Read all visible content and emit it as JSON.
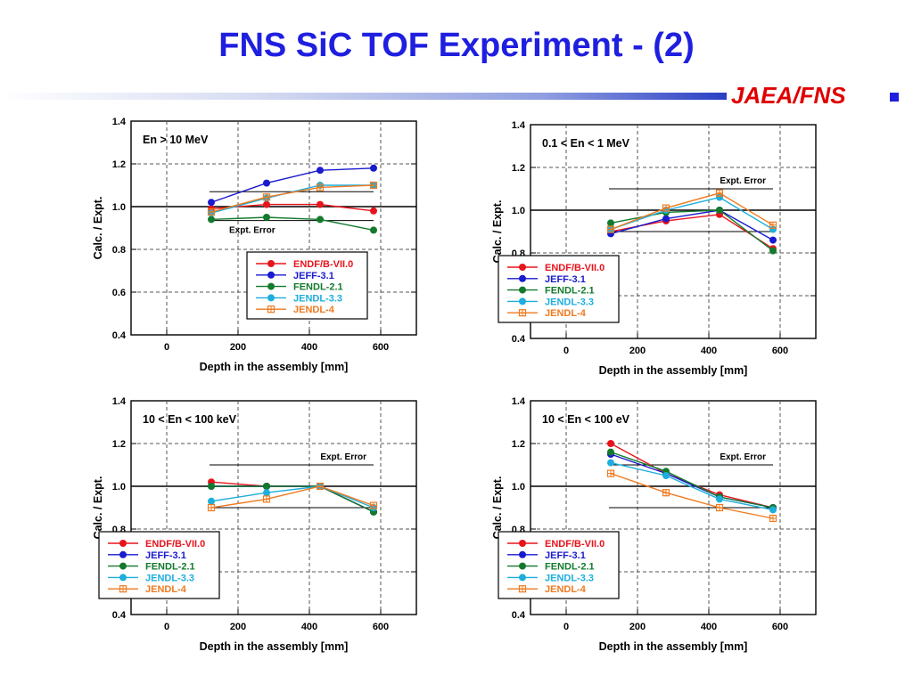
{
  "slide": {
    "title": "FNS SiC TOF Experiment - (2)",
    "brand": "JAEA/FNS"
  },
  "colors": {
    "title": "#1f1fe0",
    "brand": "#e00000",
    "series": {
      "ENDF/B-VII.0": "#e8141c",
      "JEFF-3.1": "#1a1ad0",
      "FENDL-2.1": "#137a2d",
      "JENDL-3.3": "#1eaedc",
      "JENDL-4": "#ef7a20"
    }
  },
  "chart_data": [
    {
      "type": "line",
      "annotation": "En > 10 MeV",
      "xlabel": "Depth in the assembly [mm]",
      "ylabel": "Calc. / Expt.",
      "xlim": [
        -100,
        700
      ],
      "ylim": [
        0.4,
        1.4
      ],
      "xticks": [
        0,
        200,
        400,
        600
      ],
      "yticks": [
        0.4,
        0.6,
        0.8,
        1.0,
        1.2,
        1.4
      ],
      "grid": true,
      "legend_position": "lower-right",
      "expt_error": {
        "label": "Expt. Error",
        "upper": 1.07,
        "lower": 0.935,
        "x": [
          120,
          580
        ]
      },
      "x": [
        125,
        280,
        430,
        580
      ],
      "series": [
        {
          "name": "ENDF/B-VII.0",
          "marker": "circle",
          "values": [
            0.99,
            1.01,
            1.01,
            0.98
          ]
        },
        {
          "name": "JEFF-3.1",
          "marker": "circle",
          "values": [
            1.02,
            1.11,
            1.17,
            1.18
          ]
        },
        {
          "name": "FENDL-2.1",
          "marker": "circle",
          "values": [
            0.94,
            0.95,
            0.94,
            0.89
          ]
        },
        {
          "name": "JENDL-3.3",
          "marker": "circle",
          "values": [
            0.97,
            1.04,
            1.1,
            1.1
          ]
        },
        {
          "name": "JENDL-4",
          "marker": "square-plus",
          "values": [
            0.975,
            1.045,
            1.09,
            1.1
          ]
        }
      ]
    },
    {
      "type": "line",
      "annotation": "0.1 < En < 1 MeV",
      "xlabel": "Depth in the assembly [mm]",
      "ylabel": "Calc. / Expt.",
      "xlim": [
        -100,
        700
      ],
      "ylim": [
        0.4,
        1.4
      ],
      "xticks": [
        0,
        200,
        400,
        600
      ],
      "yticks": [
        0.4,
        0.6,
        0.8,
        1.0,
        1.2,
        1.4
      ],
      "grid": true,
      "legend_position": "lower-left",
      "expt_error": {
        "label": "Expt. Error",
        "upper": 1.1,
        "lower": 0.9,
        "x": [
          120,
          580
        ]
      },
      "x": [
        125,
        280,
        430,
        580
      ],
      "series": [
        {
          "name": "ENDF/B-VII.0",
          "marker": "circle",
          "values": [
            0.9,
            0.95,
            0.98,
            0.82
          ]
        },
        {
          "name": "JEFF-3.1",
          "marker": "circle",
          "values": [
            0.89,
            0.96,
            1.0,
            0.86
          ]
        },
        {
          "name": "FENDL-2.1",
          "marker": "circle",
          "values": [
            0.94,
            0.99,
            1.0,
            0.81
          ]
        },
        {
          "name": "JENDL-3.3",
          "marker": "circle",
          "values": [
            0.91,
            1.0,
            1.06,
            0.91
          ]
        },
        {
          "name": "JENDL-4",
          "marker": "square-plus",
          "values": [
            0.91,
            1.01,
            1.08,
            0.93
          ]
        }
      ]
    },
    {
      "type": "line",
      "annotation": "10 < En < 100 keV",
      "xlabel": "Depth in the assembly [mm]",
      "ylabel": "Calc. / Expt.",
      "xlim": [
        -100,
        700
      ],
      "ylim": [
        0.4,
        1.4
      ],
      "xticks": [
        0,
        200,
        400,
        600
      ],
      "yticks": [
        0.4,
        0.6,
        0.8,
        1.0,
        1.2,
        1.4
      ],
      "grid": true,
      "legend_position": "lower-left",
      "expt_error": {
        "label": "Expt. Error",
        "upper": 1.1,
        "lower": 0.9,
        "x": [
          120,
          580
        ]
      },
      "x": [
        125,
        280,
        430,
        580
      ],
      "series": [
        {
          "name": "ENDF/B-VII.0",
          "marker": "circle",
          "values": [
            1.02,
            1.0,
            1.0,
            0.88
          ]
        },
        {
          "name": "JEFF-3.1",
          "marker": "circle",
          "values": [
            1.0,
            1.0,
            1.0,
            0.88
          ]
        },
        {
          "name": "FENDL-2.1",
          "marker": "circle",
          "values": [
            1.0,
            1.0,
            1.0,
            0.88
          ]
        },
        {
          "name": "JENDL-3.3",
          "marker": "circle",
          "values": [
            0.93,
            0.97,
            1.0,
            0.9
          ]
        },
        {
          "name": "JENDL-4",
          "marker": "square-plus",
          "values": [
            0.9,
            0.94,
            1.0,
            0.91
          ]
        }
      ]
    },
    {
      "type": "line",
      "annotation": "10 < En < 100 eV",
      "xlabel": "Depth in the assembly [mm]",
      "ylabel": "Calc. / Expt.",
      "xlim": [
        -100,
        700
      ],
      "ylim": [
        0.4,
        1.4
      ],
      "xticks": [
        0,
        200,
        400,
        600
      ],
      "yticks": [
        0.4,
        0.6,
        0.8,
        1.0,
        1.2,
        1.4
      ],
      "grid": true,
      "legend_position": "lower-left",
      "expt_error": {
        "label": "Expt. Error",
        "upper": 1.1,
        "lower": 0.9,
        "x": [
          120,
          580
        ]
      },
      "x": [
        125,
        280,
        430,
        580
      ],
      "series": [
        {
          "name": "ENDF/B-VII.0",
          "marker": "circle",
          "values": [
            1.2,
            1.06,
            0.96,
            0.9
          ]
        },
        {
          "name": "JEFF-3.1",
          "marker": "circle",
          "values": [
            1.15,
            1.06,
            0.95,
            0.9
          ]
        },
        {
          "name": "FENDL-2.1",
          "marker": "circle",
          "values": [
            1.16,
            1.07,
            0.95,
            0.9
          ]
        },
        {
          "name": "JENDL-3.3",
          "marker": "circle",
          "values": [
            1.11,
            1.05,
            0.94,
            0.89
          ]
        },
        {
          "name": "JENDL-4",
          "marker": "square-plus",
          "values": [
            1.06,
            0.97,
            0.9,
            0.85
          ]
        }
      ]
    }
  ]
}
